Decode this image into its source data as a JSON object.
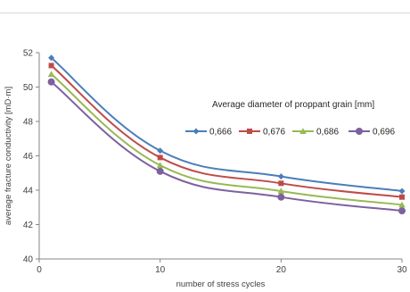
{
  "chart_data": {
    "type": "line",
    "xlabel": "number of stress cycles",
    "ylabel": "average fracture conductivity [mD·m]",
    "xlim": [
      0,
      30
    ],
    "ylim": [
      40,
      52
    ],
    "x_ticks": [
      "0",
      "10",
      "20",
      "30"
    ],
    "y_ticks": [
      "40",
      "42",
      "44",
      "46",
      "48",
      "50",
      "52"
    ],
    "legend_title": "Average diameter of proppant grain [mm]",
    "x": [
      1,
      10,
      20,
      30
    ],
    "series": [
      {
        "name": "0,666",
        "values": [
          51.7,
          46.3,
          44.8,
          43.95
        ],
        "color": "#4a7ebb",
        "marker": "diamond"
      },
      {
        "name": "0,676",
        "values": [
          51.25,
          45.9,
          44.4,
          43.6
        ],
        "color": "#be4b48",
        "marker": "square"
      },
      {
        "name": "0,686",
        "values": [
          50.75,
          45.45,
          43.95,
          43.15
        ],
        "color": "#98b954",
        "marker": "triangle"
      },
      {
        "name": "0,696",
        "values": [
          50.3,
          45.1,
          43.6,
          42.8
        ],
        "color": "#7d60a0",
        "marker": "circle"
      }
    ],
    "grid": false,
    "legend_placement": "right"
  }
}
